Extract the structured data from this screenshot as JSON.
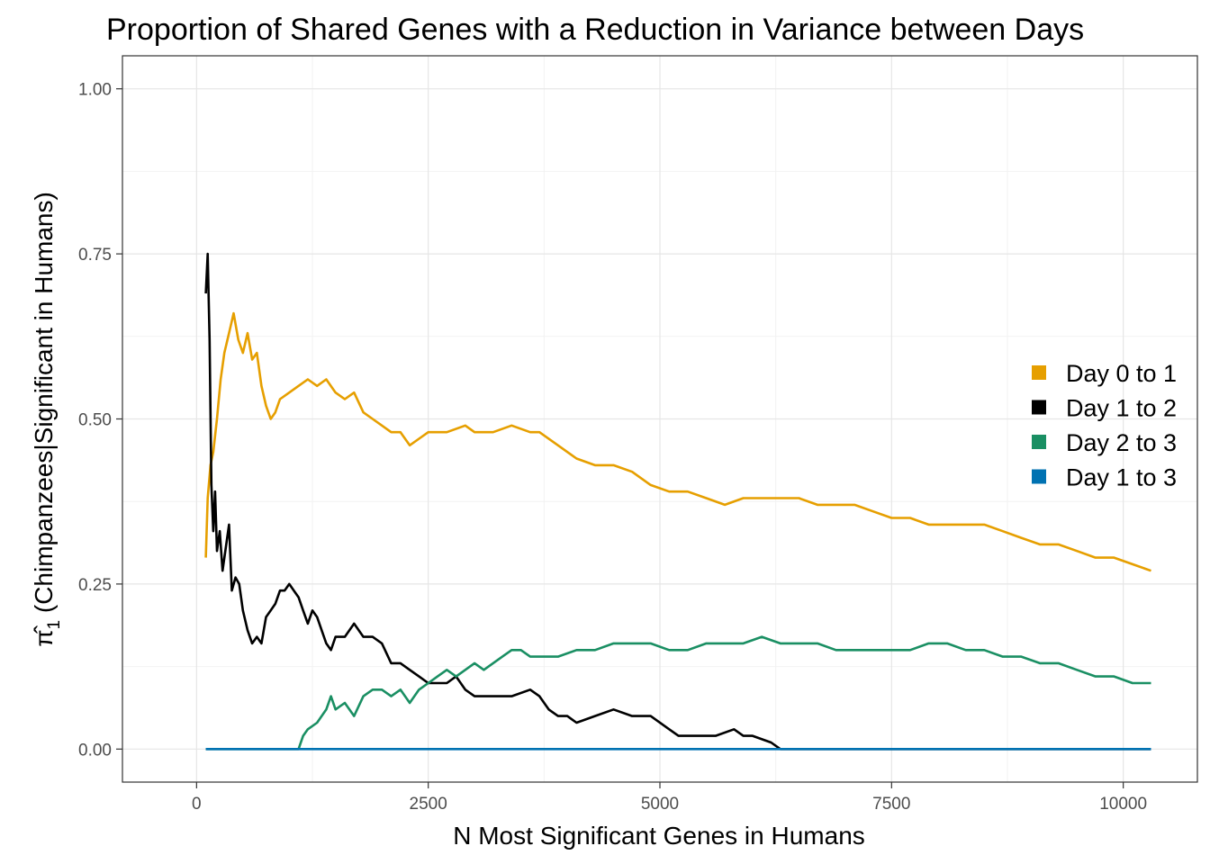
{
  "chart_data": {
    "type": "line",
    "title": "Proportion of Shared Genes with a Reduction in Variance between Days",
    "xlabel": "N Most Significant Genes in Humans",
    "ylabel_prefix": "(Chimpanzees|Significant in Humans)",
    "ylabel_symbol": "π̂",
    "ylabel_subscript": "1",
    "xlim": [
      -800,
      10800
    ],
    "ylim": [
      -0.05,
      1.05
    ],
    "x_ticks": [
      0,
      2500,
      5000,
      7500,
      10000
    ],
    "x_tick_labels": [
      "0",
      "2500",
      "5000",
      "7500",
      "10000"
    ],
    "y_ticks": [
      0.0,
      0.25,
      0.5,
      0.75,
      1.0
    ],
    "y_tick_labels": [
      "0.00",
      "0.25",
      "0.50",
      "0.75",
      "1.00"
    ],
    "grid": true,
    "legend_position": "right",
    "series": [
      {
        "name": "Day 0 to 1",
        "color": "#E69F00",
        "points": [
          [
            100,
            0.29
          ],
          [
            120,
            0.38
          ],
          [
            150,
            0.43
          ],
          [
            180,
            0.45
          ],
          [
            220,
            0.5
          ],
          [
            260,
            0.56
          ],
          [
            300,
            0.6
          ],
          [
            350,
            0.63
          ],
          [
            400,
            0.66
          ],
          [
            450,
            0.62
          ],
          [
            500,
            0.6
          ],
          [
            550,
            0.63
          ],
          [
            600,
            0.59
          ],
          [
            650,
            0.6
          ],
          [
            700,
            0.55
          ],
          [
            750,
            0.52
          ],
          [
            800,
            0.5
          ],
          [
            850,
            0.51
          ],
          [
            900,
            0.53
          ],
          [
            1000,
            0.54
          ],
          [
            1100,
            0.55
          ],
          [
            1200,
            0.56
          ],
          [
            1300,
            0.55
          ],
          [
            1400,
            0.56
          ],
          [
            1500,
            0.54
          ],
          [
            1600,
            0.53
          ],
          [
            1700,
            0.54
          ],
          [
            1800,
            0.51
          ],
          [
            1900,
            0.5
          ],
          [
            2000,
            0.49
          ],
          [
            2100,
            0.48
          ],
          [
            2200,
            0.48
          ],
          [
            2300,
            0.46
          ],
          [
            2400,
            0.47
          ],
          [
            2500,
            0.48
          ],
          [
            2700,
            0.48
          ],
          [
            2900,
            0.49
          ],
          [
            3000,
            0.48
          ],
          [
            3200,
            0.48
          ],
          [
            3400,
            0.49
          ],
          [
            3600,
            0.48
          ],
          [
            3700,
            0.48
          ],
          [
            3900,
            0.46
          ],
          [
            4100,
            0.44
          ],
          [
            4300,
            0.43
          ],
          [
            4500,
            0.43
          ],
          [
            4700,
            0.42
          ],
          [
            4900,
            0.4
          ],
          [
            5100,
            0.39
          ],
          [
            5300,
            0.39
          ],
          [
            5500,
            0.38
          ],
          [
            5700,
            0.37
          ],
          [
            5900,
            0.38
          ],
          [
            6100,
            0.38
          ],
          [
            6300,
            0.38
          ],
          [
            6500,
            0.38
          ],
          [
            6700,
            0.37
          ],
          [
            6900,
            0.37
          ],
          [
            7100,
            0.37
          ],
          [
            7300,
            0.36
          ],
          [
            7500,
            0.35
          ],
          [
            7700,
            0.35
          ],
          [
            7900,
            0.34
          ],
          [
            8100,
            0.34
          ],
          [
            8300,
            0.34
          ],
          [
            8500,
            0.34
          ],
          [
            8700,
            0.33
          ],
          [
            8900,
            0.32
          ],
          [
            9100,
            0.31
          ],
          [
            9300,
            0.31
          ],
          [
            9500,
            0.3
          ],
          [
            9700,
            0.29
          ],
          [
            9900,
            0.29
          ],
          [
            10100,
            0.28
          ],
          [
            10300,
            0.27
          ]
        ]
      },
      {
        "name": "Day 1 to 2",
        "color": "#000000",
        "points": [
          [
            100,
            0.69
          ],
          [
            120,
            0.75
          ],
          [
            140,
            0.62
          ],
          [
            160,
            0.4
          ],
          [
            180,
            0.33
          ],
          [
            200,
            0.39
          ],
          [
            220,
            0.3
          ],
          [
            250,
            0.33
          ],
          [
            280,
            0.27
          ],
          [
            320,
            0.31
          ],
          [
            350,
            0.34
          ],
          [
            380,
            0.24
          ],
          [
            420,
            0.26
          ],
          [
            460,
            0.25
          ],
          [
            500,
            0.21
          ],
          [
            550,
            0.18
          ],
          [
            600,
            0.16
          ],
          [
            650,
            0.17
          ],
          [
            700,
            0.16
          ],
          [
            750,
            0.2
          ],
          [
            800,
            0.21
          ],
          [
            850,
            0.22
          ],
          [
            900,
            0.24
          ],
          [
            950,
            0.24
          ],
          [
            1000,
            0.25
          ],
          [
            1050,
            0.24
          ],
          [
            1100,
            0.23
          ],
          [
            1150,
            0.21
          ],
          [
            1200,
            0.19
          ],
          [
            1250,
            0.21
          ],
          [
            1300,
            0.2
          ],
          [
            1350,
            0.18
          ],
          [
            1400,
            0.16
          ],
          [
            1450,
            0.15
          ],
          [
            1500,
            0.17
          ],
          [
            1600,
            0.17
          ],
          [
            1700,
            0.19
          ],
          [
            1800,
            0.17
          ],
          [
            1900,
            0.17
          ],
          [
            2000,
            0.16
          ],
          [
            2100,
            0.13
          ],
          [
            2200,
            0.13
          ],
          [
            2300,
            0.12
          ],
          [
            2400,
            0.11
          ],
          [
            2500,
            0.1
          ],
          [
            2600,
            0.1
          ],
          [
            2700,
            0.1
          ],
          [
            2800,
            0.11
          ],
          [
            2900,
            0.09
          ],
          [
            3000,
            0.08
          ],
          [
            3200,
            0.08
          ],
          [
            3400,
            0.08
          ],
          [
            3600,
            0.09
          ],
          [
            3700,
            0.08
          ],
          [
            3800,
            0.06
          ],
          [
            3900,
            0.05
          ],
          [
            4000,
            0.05
          ],
          [
            4100,
            0.04
          ],
          [
            4300,
            0.05
          ],
          [
            4500,
            0.06
          ],
          [
            4700,
            0.05
          ],
          [
            4900,
            0.05
          ],
          [
            5100,
            0.03
          ],
          [
            5200,
            0.02
          ],
          [
            5400,
            0.02
          ],
          [
            5600,
            0.02
          ],
          [
            5800,
            0.03
          ],
          [
            5900,
            0.02
          ],
          [
            6000,
            0.02
          ],
          [
            6200,
            0.01
          ],
          [
            6300,
            0.0
          ],
          [
            10300,
            0.0
          ]
        ]
      },
      {
        "name": "Day 2 to 3",
        "color": "#1A8F63",
        "points": [
          [
            100,
            0.0
          ],
          [
            1100,
            0.0
          ],
          [
            1150,
            0.02
          ],
          [
            1200,
            0.03
          ],
          [
            1300,
            0.04
          ],
          [
            1400,
            0.06
          ],
          [
            1450,
            0.08
          ],
          [
            1500,
            0.06
          ],
          [
            1600,
            0.07
          ],
          [
            1700,
            0.05
          ],
          [
            1800,
            0.08
          ],
          [
            1900,
            0.09
          ],
          [
            2000,
            0.09
          ],
          [
            2100,
            0.08
          ],
          [
            2200,
            0.09
          ],
          [
            2300,
            0.07
          ],
          [
            2400,
            0.09
          ],
          [
            2500,
            0.1
          ],
          [
            2600,
            0.11
          ],
          [
            2700,
            0.12
          ],
          [
            2800,
            0.11
          ],
          [
            2900,
            0.12
          ],
          [
            3000,
            0.13
          ],
          [
            3100,
            0.12
          ],
          [
            3200,
            0.13
          ],
          [
            3300,
            0.14
          ],
          [
            3400,
            0.15
          ],
          [
            3500,
            0.15
          ],
          [
            3600,
            0.14
          ],
          [
            3700,
            0.14
          ],
          [
            3900,
            0.14
          ],
          [
            4100,
            0.15
          ],
          [
            4300,
            0.15
          ],
          [
            4500,
            0.16
          ],
          [
            4700,
            0.16
          ],
          [
            4900,
            0.16
          ],
          [
            5100,
            0.15
          ],
          [
            5300,
            0.15
          ],
          [
            5500,
            0.16
          ],
          [
            5700,
            0.16
          ],
          [
            5900,
            0.16
          ],
          [
            6100,
            0.17
          ],
          [
            6300,
            0.16
          ],
          [
            6500,
            0.16
          ],
          [
            6700,
            0.16
          ],
          [
            6900,
            0.15
          ],
          [
            7100,
            0.15
          ],
          [
            7300,
            0.15
          ],
          [
            7500,
            0.15
          ],
          [
            7700,
            0.15
          ],
          [
            7900,
            0.16
          ],
          [
            8100,
            0.16
          ],
          [
            8300,
            0.15
          ],
          [
            8500,
            0.15
          ],
          [
            8700,
            0.14
          ],
          [
            8900,
            0.14
          ],
          [
            9100,
            0.13
          ],
          [
            9300,
            0.13
          ],
          [
            9500,
            0.12
          ],
          [
            9700,
            0.11
          ],
          [
            9900,
            0.11
          ],
          [
            10100,
            0.1
          ],
          [
            10300,
            0.1
          ]
        ]
      },
      {
        "name": "Day 1 to 3",
        "color": "#0072B2",
        "points": [
          [
            100,
            0.0
          ],
          [
            10300,
            0.0
          ]
        ]
      }
    ]
  }
}
